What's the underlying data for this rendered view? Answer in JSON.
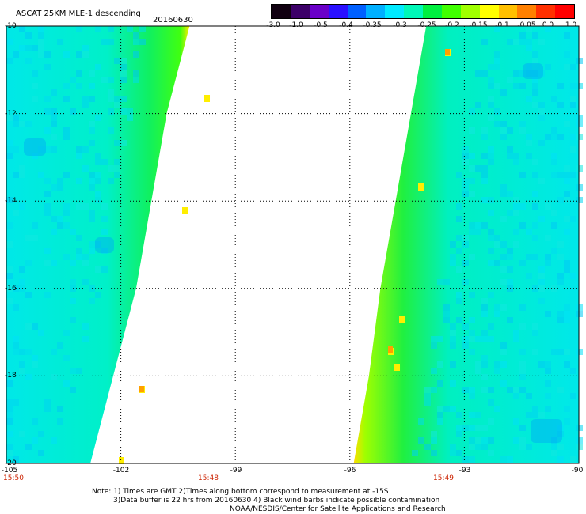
{
  "header": {
    "title": "ASCAT 25KM MLE-1 descending",
    "date": "20160630"
  },
  "colorbar": {
    "labels": [
      "-3.0",
      "-1.0",
      "-0.5",
      "-0.4",
      "-0.35",
      "-0.3",
      "-0.25",
      "-0.2",
      "-0.15",
      "-0.1",
      "-0.05",
      "0.0",
      "1.0"
    ],
    "colors": [
      "#100010",
      "#3c0068",
      "#6a00c8",
      "#2a10ff",
      "#0060ff",
      "#00b0ff",
      "#00eaff",
      "#00f8b8",
      "#00f040",
      "#40ff00",
      "#a0ff00",
      "#ffff00",
      "#ffc000",
      "#ff8000",
      "#ff3000",
      "#ff0000"
    ]
  },
  "map": {
    "lat_labels": [
      "-10",
      "-12",
      "-14",
      "-16",
      "-18",
      "-20"
    ],
    "lon_labels": [
      "-105",
      "-102",
      "-99",
      "-96",
      "-93",
      "-90"
    ],
    "time_labels": [
      "15:50",
      "15:48",
      "15:49"
    ],
    "lat_range": [
      -20,
      -10
    ],
    "lon_range": [
      -105,
      -90
    ],
    "ocean_color": "#00eaea",
    "nadir_color": "#30f040",
    "edge_color": "#ffee00",
    "swath_left_edge": [
      [
        -10,
        -100.2
      ],
      [
        -12,
        -100.8
      ],
      [
        -14,
        -101.2
      ],
      [
        -16,
        -101.6
      ],
      [
        -18,
        -102.2
      ],
      [
        -20,
        -102.8
      ]
    ],
    "swath_right_edge": [
      [
        -10,
        -94.0
      ],
      [
        -12,
        -94.4
      ],
      [
        -14,
        -94.8
      ],
      [
        -16,
        -95.2
      ],
      [
        -18,
        -95.5
      ],
      [
        -20,
        -95.9
      ]
    ]
  },
  "notes": {
    "line1": "Note: 1) Times are GMT 2)Times along bottom correspond to measurement at -15S",
    "line2": "3)Data buffer is 22 hrs from 20160630 4) Black wind barbs indicate possible contamination",
    "line3": "NOAA/NESDIS/Center for Satellite Applications and Research"
  }
}
